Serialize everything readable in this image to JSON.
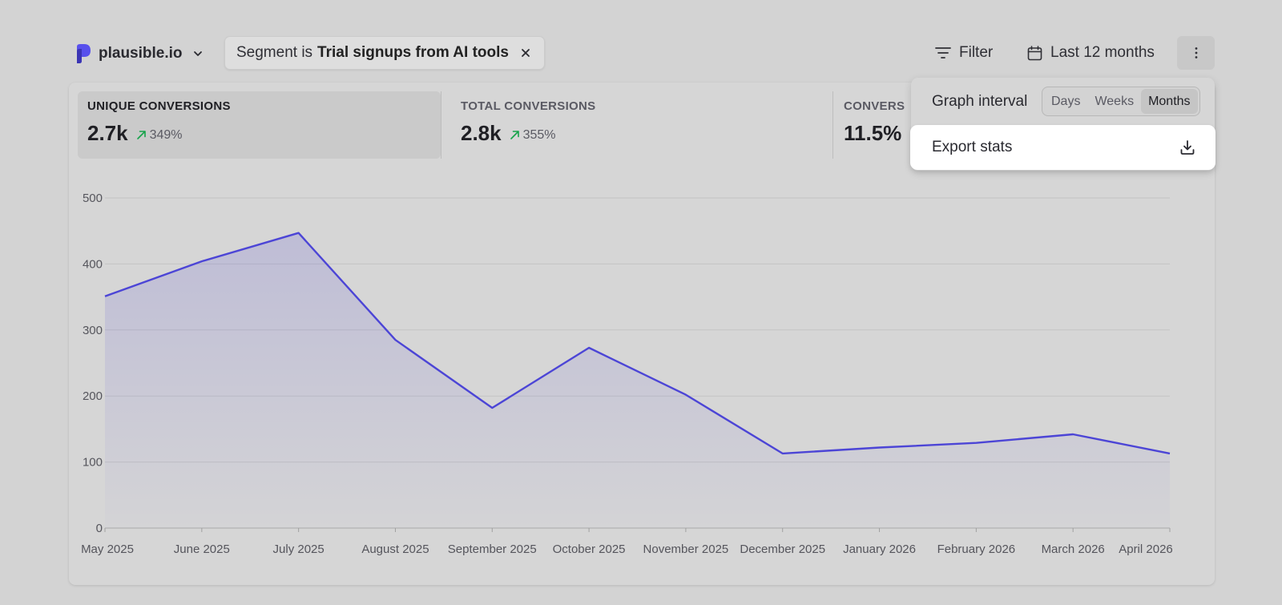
{
  "site": {
    "name": "plausible.io"
  },
  "segment": {
    "prefix": "Segment is",
    "name": "Trial signups from AI tools"
  },
  "toolbar": {
    "filter_label": "Filter",
    "period_label": "Last 12 months"
  },
  "metrics": [
    {
      "label": "UNIQUE CONVERSIONS",
      "value": "2.7k",
      "change": "349%",
      "active": true
    },
    {
      "label": "TOTAL CONVERSIONS",
      "value": "2.8k",
      "change": "355%"
    },
    {
      "label": "CONVERS",
      "value": "11.5%"
    }
  ],
  "dropdown": {
    "interval_label": "Graph interval",
    "options": [
      "Days",
      "Weeks",
      "Months"
    ],
    "selected": "Months",
    "export_label": "Export stats"
  },
  "colors": {
    "line": "#4c45d6",
    "positive": "#16a34a"
  },
  "chart_data": {
    "type": "area",
    "categories": [
      "May 2025",
      "June 2025",
      "July 2025",
      "August 2025",
      "September 2025",
      "October 2025",
      "November 2025",
      "December 2025",
      "January 2026",
      "February 2026",
      "March 2026",
      "April 2026"
    ],
    "values": [
      351,
      404,
      447,
      285,
      182,
      273,
      202,
      113,
      122,
      129,
      142,
      113
    ],
    "yticks": [
      0,
      100,
      200,
      300,
      400,
      500
    ],
    "ylim": [
      0,
      500
    ],
    "grid": true
  }
}
